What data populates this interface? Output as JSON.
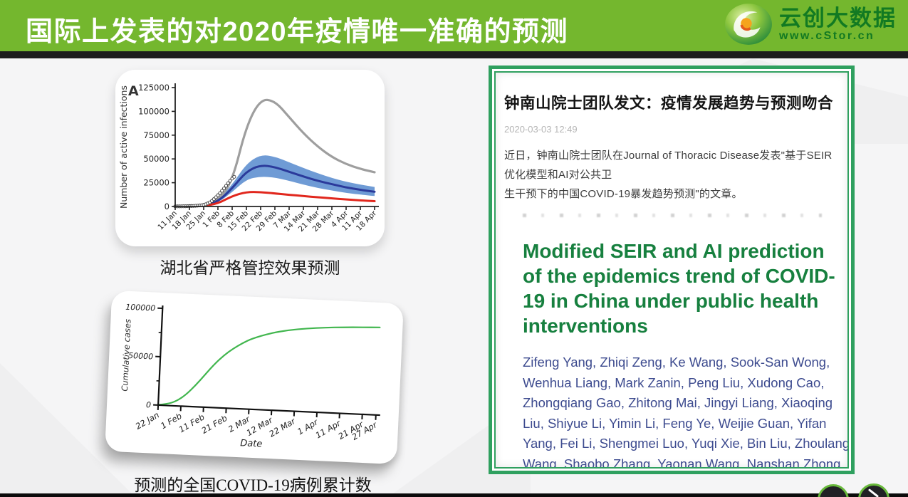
{
  "header": {
    "title": "国际上发表的对2020年疫情唯一准确的预测",
    "logo_name": "云创大数据",
    "logo_url": "www.cStor.cn"
  },
  "left": {
    "chart_a_caption": "湖北省严格管控效果预测",
    "chart_b_caption": "预测的全国COVID-19病例累计数"
  },
  "article": {
    "title": "钟南山院士团队发文：疫情发展趋势与预测吻合",
    "timestamp": "2020-03-03 12:49",
    "body": "近日，钟南山院士团队在Journal of Thoracic Disease发表\"基于SEIR优化模型和AI对公共卫\n生干预下的中国COVID-19暴发趋势预测\"的文章。",
    "paper_title": "Modified SEIR and AI prediction\nof the epidemics trend of COVID-\n19 in China under public health\ninterventions",
    "authors": "Zifeng Yang, Zhiqi Zeng, Ke Wang, Sook-San Wong,\nWenhua Liang, Mark Zanin, Peng Liu, Xudong Cao,\nZhongqiang Gao, Zhitong Mai, Jingyi Liang, Xiaoqing\nLiu, Shiyue Li, Yimin Li, Feng Ye, Weijie Guan, Yifan\nYang, Fei Li, Shengmei Luo, Yuqi Xie, Bin Liu, Zhoulang\nWang, Shaobo Zhang, Yaonan Wang, Nanshan Zhong,\nJianxing He"
  },
  "icons": {
    "logo": "green-swirl-logo-icon",
    "next_button": "diagonal-arrow-icon"
  },
  "colors": {
    "header_green": "#74b72e",
    "logo_green": "#127a22",
    "frame_green": "#2fa05f",
    "paper_title_green": "#17803f",
    "authors_blue": "#3d4b8f",
    "band_blue": "#6f9bd5",
    "line_navy": "#2b3a9b",
    "line_red": "#e1271d",
    "line_gray": "#9e9e9e",
    "line_green": "#41b64e"
  },
  "chart_data": [
    {
      "id": "hubei_active_infections",
      "type": "line",
      "panel_label": "A",
      "title": "",
      "xlabel": "",
      "ylabel": "Number of active infections",
      "ylim": [
        0,
        125000
      ],
      "y_ticks": [
        0,
        25000,
        50000,
        75000,
        100000,
        125000
      ],
      "x_ticklabels": [
        "11 Jan",
        "18 Jan",
        "25 Jan",
        "1 Feb",
        "8 Feb",
        "15 Feb",
        "22 Feb",
        "29 Feb",
        "7 Mar",
        "14 Mar",
        "21 Mar",
        "28 Mar",
        "4 Apr",
        "11 Apr",
        "18 Apr"
      ],
      "series": [
        {
          "name": "no-intervention scenario",
          "color": "#9e9e9e",
          "width": 3.2,
          "values": [
            100,
            300,
            1500,
            6000,
            26000,
            85000,
            113000,
            111000,
            94000,
            77000,
            63000,
            52000,
            44500,
            39500,
            36000
          ]
        },
        {
          "name": "predicted median",
          "color": "#2b3a9b",
          "width": 3,
          "values": [
            100,
            300,
            1200,
            5000,
            19000,
            37000,
            43500,
            41500,
            36500,
            31500,
            27000,
            23500,
            20000,
            17500,
            15500
          ]
        },
        {
          "name": "stricter-control scenario",
          "color": "#e1271d",
          "width": 3,
          "values": [
            80,
            200,
            800,
            3000,
            11000,
            15300,
            15200,
            13700,
            12300,
            11000,
            9700,
            8500,
            7400,
            6400,
            5600
          ]
        }
      ],
      "band": {
        "name": "prediction interval",
        "color": "#6f9bd5",
        "upper": [
          150,
          400,
          1600,
          6500,
          23000,
          45000,
          54500,
          52500,
          46500,
          40500,
          35000,
          30000,
          26000,
          23000,
          20500
        ],
        "lower": [
          80,
          250,
          900,
          3800,
          15000,
          28500,
          31500,
          30500,
          27000,
          23000,
          19500,
          16800,
          14300,
          12500,
          11000
        ]
      },
      "observed": {
        "name": "reported data (white dots)",
        "days": [
          0,
          1,
          2,
          3,
          4,
          5,
          6,
          7,
          8,
          9,
          10,
          11,
          12,
          13,
          14,
          15,
          16,
          17,
          18,
          19,
          20,
          21,
          22,
          23,
          24,
          25,
          26,
          27,
          28,
          29
        ],
        "values": [
          100,
          120,
          150,
          180,
          220,
          270,
          330,
          400,
          480,
          570,
          700,
          850,
          1050,
          1300,
          1700,
          2300,
          3200,
          4300,
          5800,
          7700,
          9700,
          11800,
          14000,
          16500,
          19000,
          21700,
          24400,
          27000,
          29300,
          31200
        ]
      },
      "x_total_days": 98,
      "legend_position": "none",
      "grid": false
    },
    {
      "id": "national_cumulative_cases",
      "type": "line",
      "title": "",
      "xlabel": "Date",
      "ylabel": "Cumulative cases",
      "ylim": [
        0,
        100000
      ],
      "y_ticks": [
        0,
        50000,
        100000
      ],
      "y_minor_ticks": [
        25000,
        75000
      ],
      "x_ticklabels": [
        "22 Jan",
        "1 Feb",
        "11 Feb",
        "21 Feb",
        "2 Mar",
        "12 Mar",
        "22 Mar",
        "1 Apr",
        "11 Apr",
        "21 Apr",
        "27 Apr"
      ],
      "x_tick_days": [
        0,
        10,
        20,
        30,
        40,
        50,
        60,
        70,
        80,
        90,
        96
      ],
      "x_total_days": 96,
      "series": [
        {
          "name": "predicted cumulative COVID-19 cases",
          "color": "#41b64e",
          "width": 2.2,
          "days": [
            0,
            4,
            8,
            12,
            16,
            20,
            24,
            28,
            32,
            36,
            40,
            48,
            56,
            64,
            72,
            80,
            88,
            96
          ],
          "values": [
            400,
            1500,
            5000,
            12000,
            22000,
            33500,
            45000,
            54500,
            62000,
            68000,
            73000,
            79500,
            83500,
            86000,
            87800,
            89000,
            89800,
            90500
          ]
        }
      ],
      "legend_position": "none",
      "grid": false
    }
  ]
}
